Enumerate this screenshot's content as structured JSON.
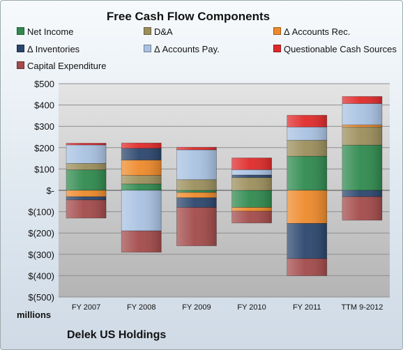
{
  "chart_data": {
    "type": "bar",
    "stacked": true,
    "title": "Free Cash Flow Components",
    "categories": [
      "FY 2007",
      "FY 2008",
      "FY 2009",
      "FY 2010",
      "FY 2011",
      "TTM 9-2012"
    ],
    "y_tick_labels": [
      "$500",
      "$400",
      "$300",
      "$200",
      "$100",
      "$-",
      "$(100)",
      "$(200)",
      "$(300)",
      "$(400)",
      "$(500)"
    ],
    "ylim": [
      -500,
      500
    ],
    "y_unit_label": "millions",
    "grid": true,
    "legend_position": "top",
    "series": [
      {
        "name": "Net Income",
        "color": "#2f8a4f",
        "values": [
          96,
          30,
          -10,
          -80,
          160,
          212
        ]
      },
      {
        "name": "D&A",
        "color": "#9c8f5c",
        "values": [
          30,
          40,
          50,
          60,
          75,
          85
        ]
      },
      {
        "name": "Δ Accounts Rec.",
        "color": "#ee8a2b",
        "values": [
          -30,
          72,
          -25,
          -18,
          -155,
          10
        ]
      },
      {
        "name": "Δ Inventories",
        "color": "#2b466d",
        "values": [
          -15,
          55,
          -45,
          12,
          -165,
          -30
        ]
      },
      {
        "name": "Δ Accounts Pay.",
        "color": "#a9c2e2",
        "values": [
          87,
          -190,
          140,
          25,
          62,
          100
        ]
      },
      {
        "name": "Questionable Cash Sources",
        "color": "#e02a2a",
        "values": [
          8,
          25,
          12,
          55,
          55,
          33
        ]
      },
      {
        "name": "Capital Expenditure",
        "color": "#a34a4a",
        "values": [
          -85,
          -100,
          -180,
          -55,
          -80,
          -110
        ]
      }
    ]
  },
  "footer": {
    "company": "Delek US Holdings"
  }
}
